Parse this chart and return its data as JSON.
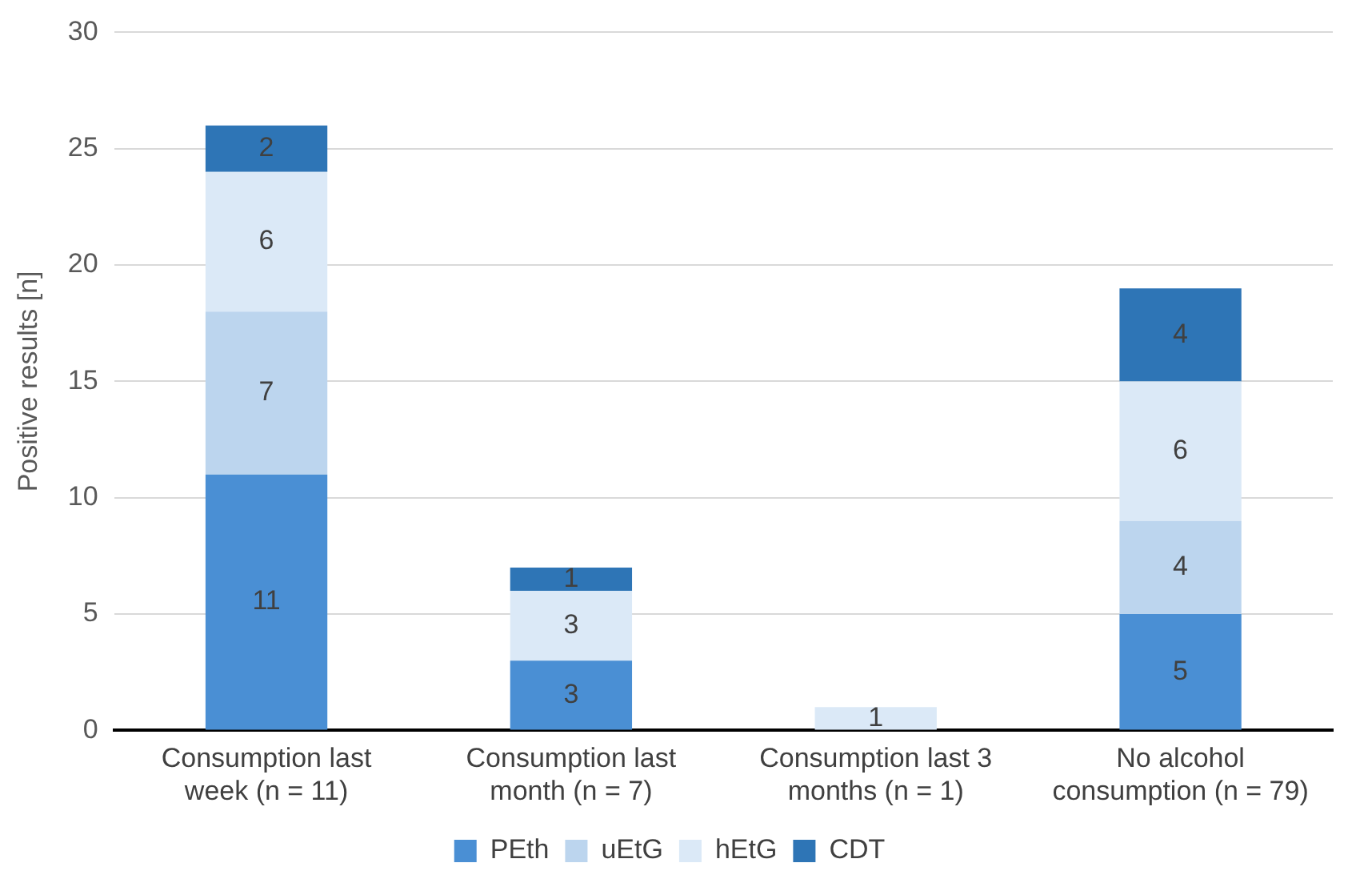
{
  "chart_data": {
    "type": "bar",
    "stacked": true,
    "ylabel": "Positive results [n]",
    "categories": [
      "Consumption last week (n = 11)",
      "Consumption last month (n = 7)",
      "Consumption last 3 months (n = 1)",
      "No alcohol consumption (n = 79)"
    ],
    "series": [
      {
        "name": "PEth",
        "color": "#4a8fd4",
        "values": [
          11,
          3,
          null,
          5
        ]
      },
      {
        "name": "uEtG",
        "color": "#bcd5ee",
        "values": [
          7,
          null,
          null,
          4
        ]
      },
      {
        "name": "hEtG",
        "color": "#dbe9f7",
        "values": [
          6,
          3,
          1,
          6
        ]
      },
      {
        "name": "CDT",
        "color": "#2e75b6",
        "values": [
          2,
          1,
          null,
          4
        ]
      }
    ],
    "ylim": [
      0,
      30
    ],
    "yticks": [
      0,
      5,
      10,
      15,
      20,
      25,
      30
    ],
    "grid": "y",
    "legend": "bottom",
    "data_labels": true
  }
}
